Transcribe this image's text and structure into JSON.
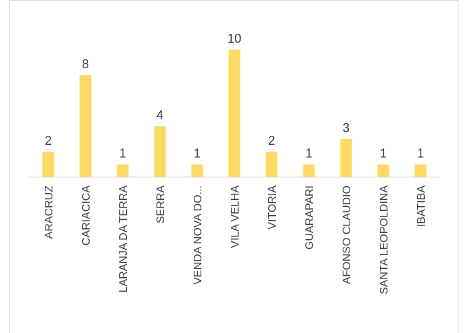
{
  "chart_data": {
    "type": "bar",
    "categories": [
      "ARACRUZ",
      "CARIACICA",
      "LARANJA DA TERRA",
      "SERRA",
      "VENDA NOVA DO...",
      "VILA VELHA",
      "VITORIA",
      "GUARAPARI",
      "AFONSO CLAUDIO",
      "SANTA LEOPOLDINA",
      "IBATIBA"
    ],
    "values": [
      2,
      8,
      1,
      4,
      1,
      10,
      2,
      1,
      3,
      1,
      1
    ],
    "value_labels": [
      "2",
      "8",
      "1",
      "4",
      "1",
      "10",
      "2",
      "1",
      "3",
      "1",
      "1"
    ],
    "ylim": [
      0,
      10
    ],
    "grid": false,
    "legend": "none",
    "bar_color": "#FFD966",
    "axis_color": "#d9d9d9",
    "text_color": "#404040"
  }
}
